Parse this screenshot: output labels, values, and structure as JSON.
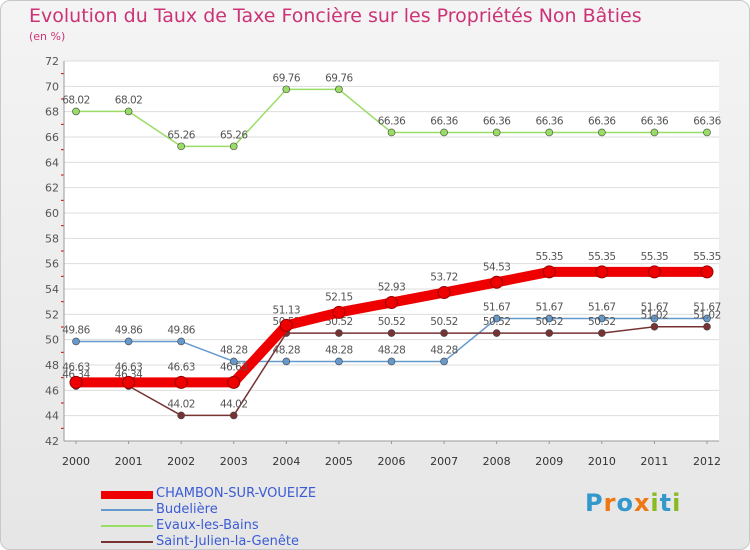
{
  "chart_data": {
    "type": "line",
    "title": "Evolution du Taux de Taxe Foncière sur les Propriétés Non Bâties",
    "subtitle": "(en %)",
    "xlabel": "",
    "ylabel": "(en %)",
    "ylim": [
      42,
      72
    ],
    "ytick_step": 2,
    "yticks": [
      "42",
      "44",
      "46",
      "48",
      "50",
      "52",
      "54",
      "56",
      "58",
      "60",
      "62",
      "64",
      "66",
      "68",
      "70",
      "72"
    ],
    "categories": [
      "2000",
      "2001",
      "2002",
      "2003",
      "2004",
      "2005",
      "2006",
      "2007",
      "2008",
      "2009",
      "2010",
      "2011",
      "2012"
    ],
    "series": [
      {
        "name": "Evaux-les-Bains",
        "color": "#99dd66",
        "values": [
          68.02,
          68.02,
          65.26,
          65.26,
          69.76,
          69.76,
          66.36,
          66.36,
          66.36,
          66.36,
          66.36,
          66.36,
          66.36
        ],
        "labels": [
          "68.02",
          "68.02",
          "65.26",
          "65.26",
          "69.76",
          "69.76",
          "66.36",
          "66.36",
          "66.36",
          "66.36",
          "66.36",
          "66.36",
          "66.36"
        ]
      },
      {
        "name": "Budelière",
        "color": "#6699cc",
        "values": [
          49.86,
          49.86,
          49.86,
          48.28,
          48.28,
          48.28,
          48.28,
          48.28,
          51.67,
          51.67,
          51.67,
          51.67,
          51.67
        ],
        "labels": [
          "49.86",
          "49.86",
          "49.86",
          "48.28",
          "48.28",
          "48.28",
          "48.28",
          "48.28",
          "51.67",
          "51.67",
          "51.67",
          "51.67",
          "51.67"
        ]
      },
      {
        "name": "Saint-Julien-la-Genête",
        "color": "#773333",
        "values": [
          46.34,
          46.34,
          44.02,
          44.02,
          50.52,
          50.52,
          50.52,
          50.52,
          50.52,
          50.52,
          50.52,
          51.02,
          51.02
        ],
        "labels": [
          "46.34",
          "46.34",
          "44.02",
          "44.02",
          "50.52",
          "50.52",
          "50.52",
          "50.52",
          "50.52",
          "50.52",
          "50.52",
          "51.02",
          "51.02"
        ]
      },
      {
        "name": "CHAMBON-SUR-VOUEIZE",
        "color": "#ee0000",
        "values": [
          46.63,
          46.63,
          46.63,
          46.63,
          51.13,
          52.15,
          52.93,
          53.72,
          54.53,
          55.35,
          55.35,
          55.35,
          55.35
        ],
        "labels": [
          "46.63",
          "46.63",
          "46.63",
          "46.63",
          "51.13",
          "52.15",
          "52.93",
          "53.72",
          "54.53",
          "55.35",
          "55.35",
          "55.35",
          "55.35"
        ]
      }
    ],
    "legend": [
      "CHAMBON-SUR-VOUEIZE",
      "Budelière",
      "Evaux-les-Bains",
      "Saint-Julien-la-Genête"
    ],
    "legend_position": "bottom-left"
  },
  "logo_text": "Proxiti"
}
